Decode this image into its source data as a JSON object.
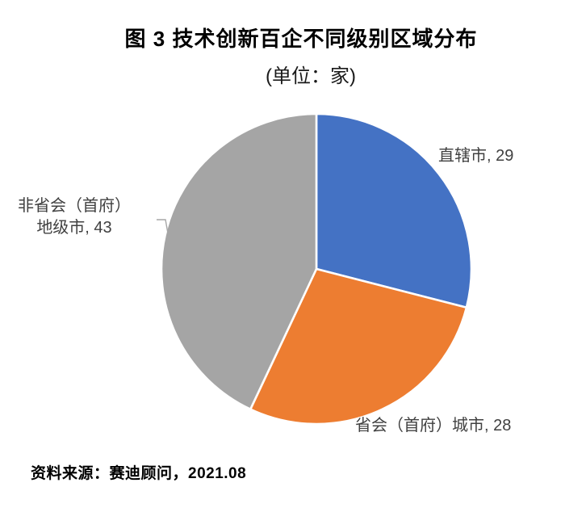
{
  "figure": {
    "title": "图 3  技术创新百企不同级别区域分布",
    "subtitle": "(单位：家)",
    "source": "资料来源：赛迪顾问，2021.08"
  },
  "labels": {
    "municipality": "直辖市, 29",
    "capital_city": "省会（首府）城市, 28",
    "non_capital_line1": "非省会（首府）",
    "non_capital_line2": "地级市, 43"
  },
  "chart_data": {
    "type": "pie",
    "title": "图 3 技术创新百企不同级别区域分布",
    "unit": "家",
    "categories": [
      "直辖市",
      "省会（首府）城市",
      "非省会（首府）地级市"
    ],
    "values": [
      29,
      28,
      43
    ],
    "colors": [
      "#4472C4",
      "#ED7D31",
      "#A5A5A5"
    ],
    "data_labels": [
      "直辖市, 29",
      "省会（首府）城市, 28",
      "非省会（首府）地级市, 43"
    ],
    "total": 100,
    "start_angle": "12-oclock",
    "direction": "clockwise",
    "legend": "none",
    "label_color": "#404040",
    "slice_gap_color": "#FFFFFF"
  }
}
